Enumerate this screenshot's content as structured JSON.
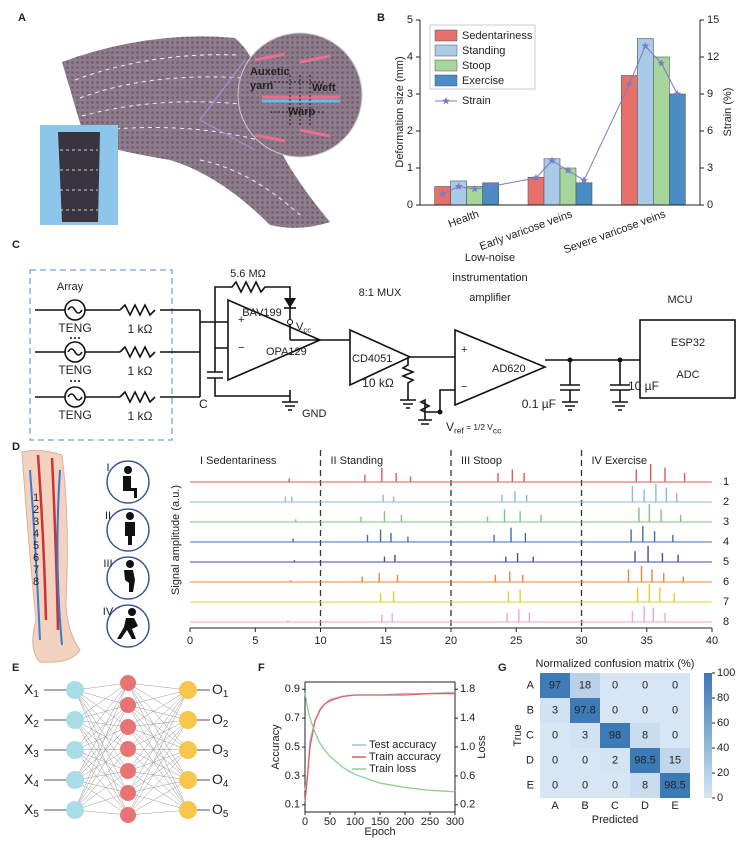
{
  "panel_labels": [
    "A",
    "B",
    "C",
    "D",
    "E",
    "F",
    "G"
  ],
  "panel_a": {
    "callouts": [
      "Auxetic",
      "yarn",
      "Weft",
      "Warp"
    ]
  },
  "panel_c": {
    "array_title": "Array",
    "sources": [
      "TENG",
      "TENG",
      "TENG"
    ],
    "resistors": [
      "1 kΩ",
      "1 kΩ",
      "1 kΩ"
    ],
    "feedback_resistor": "5.6 MΩ",
    "diode": "BAV199",
    "supply": {
      "symbol": "V",
      "sub": "cc"
    },
    "opamp_inputs": [
      "+",
      "−"
    ],
    "opamp": "OPA129",
    "capacitor": "C",
    "ground": "GND",
    "mux_title": "8:1 MUX",
    "mux": "CD4051",
    "mux_resistor": "10 kΩ",
    "amplifier_title": [
      "Low-noise",
      "instrumentation",
      "amplifier"
    ],
    "amplifier": "AD620",
    "amplifier_inputs": [
      "+",
      "−"
    ],
    "reference": [
      "V",
      "ref",
      " = 1/2 V",
      "cc"
    ],
    "filter_caps": [
      "0.1 µF",
      "10 µF"
    ],
    "mcu_title": "MCU",
    "mcu": [
      "ESP32",
      "ADC"
    ]
  },
  "panel_d": {
    "postures": [
      "I",
      "II",
      "III",
      "IV"
    ]
  },
  "panel_e": {
    "inputs": [
      {
        "symbol": "X",
        "index": "1"
      },
      {
        "symbol": "X",
        "index": "2"
      },
      {
        "symbol": "X",
        "index": "3"
      },
      {
        "symbol": "X",
        "index": "4"
      },
      {
        "symbol": "X",
        "index": "5"
      }
    ],
    "outputs": [
      {
        "symbol": "O",
        "index": "1"
      },
      {
        "symbol": "O",
        "index": "2"
      },
      {
        "symbol": "O",
        "index": "3"
      },
      {
        "symbol": "O",
        "index": "4"
      },
      {
        "symbol": "O",
        "index": "5"
      }
    ]
  },
  "chart_data": [
    {
      "type": "bar",
      "categories": [
        "Health",
        "Early varicose veins",
        "Severe varicose veins"
      ],
      "ylabel": "Deformation size (mm)",
      "y2label": "Strain (%)",
      "ylim": [
        0,
        5
      ],
      "yticks": [
        0,
        1,
        2,
        3,
        4,
        5
      ],
      "y2lim": [
        0,
        15
      ],
      "y2ticks": [
        0,
        3,
        6,
        9,
        12,
        15
      ],
      "series": [
        {
          "name": "Sedentariness",
          "color": "#e8706a",
          "values": [
            0.5,
            0.75,
            3.5
          ]
        },
        {
          "name": "Standing",
          "color": "#a9cbe8",
          "values": [
            0.65,
            1.25,
            4.5
          ]
        },
        {
          "name": "Stoop",
          "color": "#a6d69b",
          "values": [
            0.5,
            1.0,
            4.0
          ]
        },
        {
          "name": "Exercise",
          "color": "#4b8cc4",
          "values": [
            0.6,
            0.6,
            3.0
          ]
        }
      ],
      "line_series": {
        "name": "Strain",
        "color": "#7b7bc8",
        "axis": "y2",
        "values": [
          [
            0.9,
            1.5,
            1.3,
            1.5
          ],
          [
            2.2,
            3.6,
            2.8,
            2.0
          ],
          [
            9.8,
            12.9,
            11.5,
            9.0
          ]
        ]
      }
    },
    {
      "type": "spikes",
      "ylabel": "Signal amplitude (a.u.)",
      "xlim": [
        0,
        40
      ],
      "xticks": [
        0,
        5,
        10,
        15,
        20,
        25,
        30,
        35,
        40
      ],
      "regions": [
        {
          "label": "I Sedentariness",
          "start": 0
        },
        {
          "label": "II Standing",
          "start": 10
        },
        {
          "label": "III Stoop",
          "start": 20
        },
        {
          "label": "IV Exercise",
          "start": 30
        }
      ],
      "series": [
        {
          "name": "1",
          "color": "#e05a5a",
          "x": [
            7.6,
            13.4,
            14.7,
            15.8,
            16.9,
            23.6,
            24.7,
            25.6,
            34.2,
            35.3,
            36.4,
            37.9
          ],
          "values": [
            0.2,
            0.4,
            0.8,
            0.5,
            0.3,
            0.5,
            0.7,
            0.5,
            0.7,
            1.0,
            0.8,
            0.5
          ]
        },
        {
          "name": "2",
          "color": "#8fb8de",
          "x": [
            7.3,
            7.8,
            14.8,
            15.6,
            23.9,
            24.9,
            25.8,
            33.9,
            34.8,
            35.7,
            36.5,
            37.3
          ],
          "values": [
            0.3,
            0.3,
            0.4,
            0.3,
            0.4,
            0.6,
            0.4,
            0.9,
            0.7,
            1.0,
            0.8,
            0.5
          ]
        },
        {
          "name": "3",
          "color": "#7fc47c",
          "x": [
            8.1,
            13.1,
            14.9,
            16.2,
            22.8,
            24.1,
            25.3,
            26.9,
            34.4,
            35.2,
            36.1,
            37.6
          ],
          "values": [
            0.15,
            0.3,
            0.6,
            0.4,
            0.3,
            0.7,
            0.6,
            0.4,
            0.8,
            1.0,
            0.7,
            0.4
          ]
        },
        {
          "name": "4",
          "color": "#3f6fb0",
          "x": [
            7.9,
            13.6,
            14.6,
            15.4,
            16.7,
            23.3,
            24.6,
            25.7,
            33.8,
            34.7,
            35.6,
            37.0
          ],
          "values": [
            0.2,
            0.4,
            0.7,
            0.5,
            0.3,
            0.4,
            0.8,
            0.5,
            0.7,
            0.9,
            0.6,
            0.4
          ]
        },
        {
          "name": "5",
          "color": "#4a4aa8",
          "x": [
            8.0,
            14.9,
            15.7,
            24.2,
            25.1,
            26.3,
            34.1,
            35.1,
            36.2,
            37.4
          ],
          "values": [
            0.1,
            0.3,
            0.4,
            0.3,
            0.5,
            0.3,
            0.6,
            0.9,
            0.5,
            0.4
          ]
        },
        {
          "name": "6",
          "color": "#e8873a",
          "x": [
            7.7,
            13.2,
            14.5,
            15.9,
            23.4,
            24.5,
            25.5,
            33.6,
            34.6,
            35.4,
            36.3,
            37.8
          ],
          "values": [
            0.1,
            0.3,
            0.5,
            0.4,
            0.4,
            0.6,
            0.4,
            0.7,
            0.9,
            0.7,
            0.5,
            0.3
          ]
        },
        {
          "name": "7",
          "color": "#e8cf1e",
          "x": [
            14.6,
            15.6,
            24.4,
            25.3,
            34.3,
            35.2,
            36.0,
            37.1
          ],
          "values": [
            0.5,
            0.6,
            0.6,
            0.7,
            0.8,
            1.0,
            0.8,
            0.5
          ]
        },
        {
          "name": "8",
          "color": "#f2a6c4",
          "x": [
            7.5,
            14.7,
            15.5,
            24.3,
            25.2,
            26.0,
            33.9,
            34.8,
            35.5,
            36.4
          ],
          "values": [
            0.1,
            0.4,
            0.5,
            0.5,
            0.7,
            0.5,
            0.6,
            0.9,
            0.8,
            0.5
          ]
        }
      ]
    },
    {
      "type": "line",
      "xlabel": "Epoch",
      "ylabel": "Accuracy",
      "y2label": "Loss",
      "x": [
        0,
        5,
        10,
        20,
        30,
        40,
        50,
        75,
        100,
        150,
        200,
        250,
        300
      ],
      "xlim": [
        0,
        300
      ],
      "xticks": [
        0,
        50,
        100,
        150,
        200,
        250,
        300
      ],
      "ylim": [
        0.05,
        0.95
      ],
      "yticks": [
        0.1,
        0.3,
        0.5,
        0.7,
        0.9
      ],
      "y2lim": [
        0.1,
        1.9
      ],
      "y2ticks": [
        0.2,
        0.6,
        {
          "value": 1,
          "label": "1.0"
        },
        1.4,
        1.8
      ],
      "series": [
        {
          "name": "Test accuracy",
          "color": "#9ec4dc",
          "values": [
            0.2,
            0.3,
            0.55,
            0.68,
            0.75,
            0.8,
            0.83,
            0.85,
            0.86,
            0.86,
            0.87,
            0.87,
            0.88
          ]
        },
        {
          "name": "Train accuracy",
          "color": "#e06060",
          "values": [
            0.12,
            0.3,
            0.5,
            0.68,
            0.76,
            0.8,
            0.82,
            0.85,
            0.86,
            0.86,
            0.86,
            0.87,
            0.87
          ]
        },
        {
          "name": "Train loss",
          "color": "#8fcf8f",
          "axis": "y2",
          "values": [
            1.75,
            1.55,
            1.4,
            1.2,
            1.05,
            0.95,
            0.87,
            0.72,
            0.62,
            0.5,
            0.44,
            0.4,
            0.38
          ]
        }
      ]
    },
    {
      "type": "heatmap",
      "title": "Normalized confusion matrix (%)",
      "xlabel": "Predicted",
      "ylabel": "True",
      "x_categories": [
        "A",
        "B",
        "C",
        "D",
        "E"
      ],
      "y_categories": [
        "A",
        "B",
        "C",
        "D",
        "E"
      ],
      "values": [
        [
          97,
          18,
          0,
          0,
          0
        ],
        [
          3,
          97.8,
          0,
          0,
          0
        ],
        [
          0,
          3,
          98,
          8,
          0
        ],
        [
          0,
          0,
          2,
          98.5,
          15
        ],
        [
          0,
          0,
          0,
          8,
          98.5
        ]
      ],
      "zlim": [
        0,
        100
      ],
      "colorbar_ticks": [
        0,
        20,
        40,
        60,
        80,
        100
      ],
      "colors": [
        "#d6e6f4",
        "#3a78b5"
      ]
    }
  ]
}
